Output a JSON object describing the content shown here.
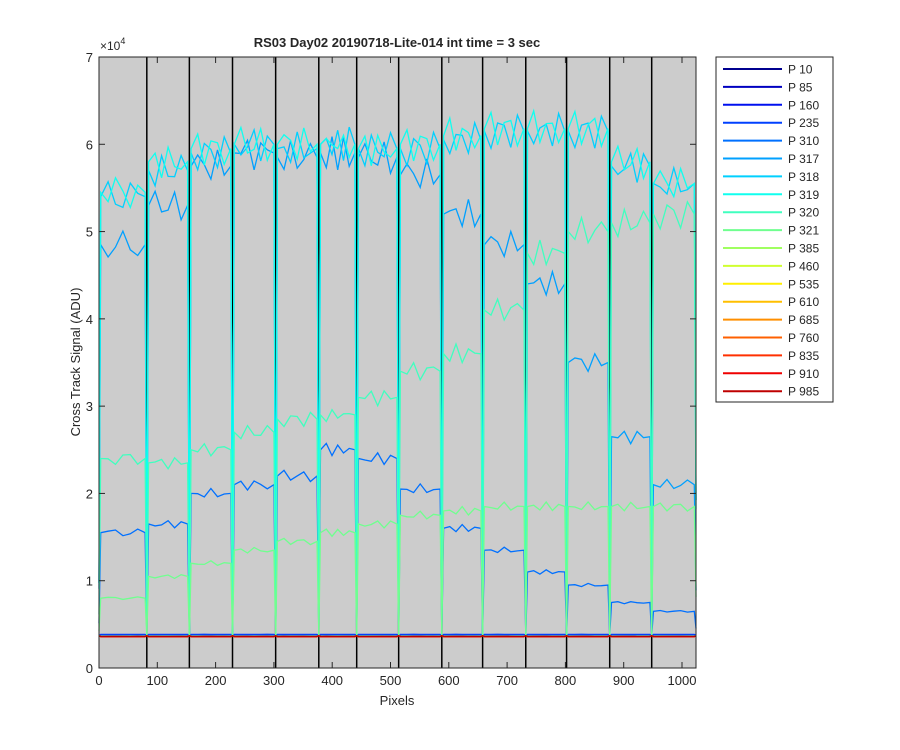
{
  "chart_data": {
    "type": "line",
    "title": "RS03 Day02 20190718-Lite-014 int time = 3 sec",
    "xlabel": "Pixels",
    "ylabel": "Cross Track Signal (ADU)",
    "y_exponent_label": "×10",
    "y_exponent_power": "4",
    "xlim": [
      0,
      1024
    ],
    "ylim": [
      0,
      70000
    ],
    "x_ticks": [
      0,
      100,
      200,
      300,
      400,
      500,
      600,
      700,
      800,
      900,
      1000
    ],
    "x_tick_labels": [
      "0",
      "100",
      "200",
      "300",
      "400",
      "500",
      "600",
      "700",
      "800",
      "900",
      "1000"
    ],
    "y_ticks": [
      0,
      10000,
      20000,
      30000,
      40000,
      50000,
      60000,
      70000
    ],
    "y_tick_labels": [
      "0",
      "1",
      "2",
      "3",
      "4",
      "5",
      "6",
      "7"
    ],
    "background_color": "#cccccc",
    "grid": false,
    "legend_position": "outside-right",
    "column_boundaries": [
      82,
      155,
      229,
      303,
      377,
      442,
      514,
      588,
      658,
      732,
      802,
      876,
      948
    ],
    "segments": [
      [
        0,
        82
      ],
      [
        82,
        155
      ],
      [
        155,
        229
      ],
      [
        229,
        303
      ],
      [
        303,
        377
      ],
      [
        377,
        442
      ],
      [
        442,
        514
      ],
      [
        514,
        588
      ],
      [
        588,
        658
      ],
      [
        658,
        732
      ],
      [
        732,
        802
      ],
      [
        802,
        876
      ],
      [
        876,
        948
      ],
      [
        948,
        1024
      ]
    ],
    "baseline_value": 3700,
    "series": [
      {
        "name": "P 10",
        "color": "#00008f",
        "levels": [
          3700,
          3700,
          3700,
          3700,
          3700,
          3700,
          3700,
          3700,
          3700,
          3700,
          3700,
          3700,
          3700,
          3700
        ]
      },
      {
        "name": "P 85",
        "color": "#0000c0",
        "levels": [
          3750,
          3750,
          3750,
          3750,
          3750,
          3750,
          3750,
          3750,
          3750,
          3750,
          3750,
          3750,
          3750,
          3750
        ]
      },
      {
        "name": "P 160",
        "color": "#0010ef",
        "levels": [
          3800,
          3800,
          3800,
          3800,
          3800,
          3800,
          3800,
          3800,
          3800,
          3800,
          3800,
          3800,
          3800,
          3800
        ]
      },
      {
        "name": "P 235",
        "color": "#0040ff",
        "levels": [
          3850,
          3850,
          3850,
          3850,
          3850,
          3850,
          3850,
          3850,
          3850,
          3850,
          3850,
          3850,
          3850,
          3850
        ]
      },
      {
        "name": "P 310",
        "color": "#0070ff",
        "levels": [
          15500,
          16500,
          20000,
          21000,
          22000,
          25000,
          24000,
          20500,
          16000,
          13500,
          11000,
          9500,
          7500,
          6500
        ]
      },
      {
        "name": "P 317",
        "color": "#00a0ff",
        "levels": [
          48500,
          53000,
          57500,
          59000,
          58500,
          59000,
          58500,
          56500,
          52000,
          48500,
          44000,
          35000,
          26500,
          21000
        ]
      },
      {
        "name": "P 318",
        "color": "#00d0ff",
        "levels": [
          54000,
          57000,
          59000,
          60000,
          59500,
          60000,
          59500,
          59500,
          60500,
          61500,
          61500,
          61500,
          57500,
          55500
        ]
      },
      {
        "name": "P 319",
        "color": "#10ffef",
        "levels": [
          54500,
          58000,
          59500,
          60000,
          60000,
          60000,
          59500,
          60000,
          61000,
          61800,
          61800,
          61800,
          58000,
          55500
        ]
      },
      {
        "name": "P 320",
        "color": "#40ffbf",
        "levels": [
          24000,
          23500,
          25000,
          27000,
          28500,
          29000,
          31000,
          34000,
          36000,
          41000,
          47500,
          50000,
          51000,
          52000
        ]
      },
      {
        "name": "P 321",
        "color": "#70ff8f",
        "levels": [
          8000,
          10500,
          12000,
          13500,
          14500,
          15500,
          16500,
          17500,
          18000,
          18500,
          18500,
          18500,
          18500,
          18500
        ]
      },
      {
        "name": "P 385",
        "color": "#a0ff60",
        "levels": [
          3650,
          3650,
          3650,
          3650,
          3650,
          3650,
          3650,
          3650,
          3650,
          3650,
          3650,
          3650,
          3650,
          3650
        ]
      },
      {
        "name": "P 460",
        "color": "#d0ff30",
        "levels": [
          3620,
          3620,
          3620,
          3620,
          3620,
          3620,
          3620,
          3620,
          3620,
          3620,
          3620,
          3620,
          3620,
          3620
        ]
      },
      {
        "name": "P 535",
        "color": "#ffef00",
        "levels": [
          3600,
          3600,
          3600,
          3600,
          3600,
          3600,
          3600,
          3600,
          3600,
          3600,
          3600,
          3600,
          3600,
          3600
        ]
      },
      {
        "name": "P 610",
        "color": "#ffbf00",
        "levels": [
          3600,
          3600,
          3600,
          3600,
          3600,
          3600,
          3600,
          3600,
          3600,
          3600,
          3600,
          3600,
          3600,
          3600
        ]
      },
      {
        "name": "P 685",
        "color": "#ff8f00",
        "levels": [
          3600,
          3600,
          3600,
          3600,
          3600,
          3600,
          3600,
          3600,
          3600,
          3600,
          3600,
          3600,
          3600,
          3600
        ]
      },
      {
        "name": "P 760",
        "color": "#ff6000",
        "levels": [
          3600,
          3600,
          3600,
          3600,
          3600,
          3600,
          3600,
          3600,
          3600,
          3600,
          3600,
          3600,
          3600,
          3600
        ]
      },
      {
        "name": "P 835",
        "color": "#ff3000",
        "levels": [
          3600,
          3600,
          3600,
          3600,
          3600,
          3600,
          3600,
          3600,
          3600,
          3600,
          3600,
          3600,
          3600,
          3600
        ]
      },
      {
        "name": "P 910",
        "color": "#ef0000",
        "levels": [
          3600,
          3600,
          3600,
          3600,
          3600,
          3600,
          3600,
          3600,
          3600,
          3600,
          3600,
          3600,
          3600,
          3600
        ]
      },
      {
        "name": "P 985",
        "color": "#bf0000",
        "levels": [
          3600,
          3600,
          3600,
          3600,
          3600,
          3600,
          3600,
          3600,
          3600,
          3600,
          3600,
          3600,
          3600,
          3600
        ]
      }
    ]
  }
}
